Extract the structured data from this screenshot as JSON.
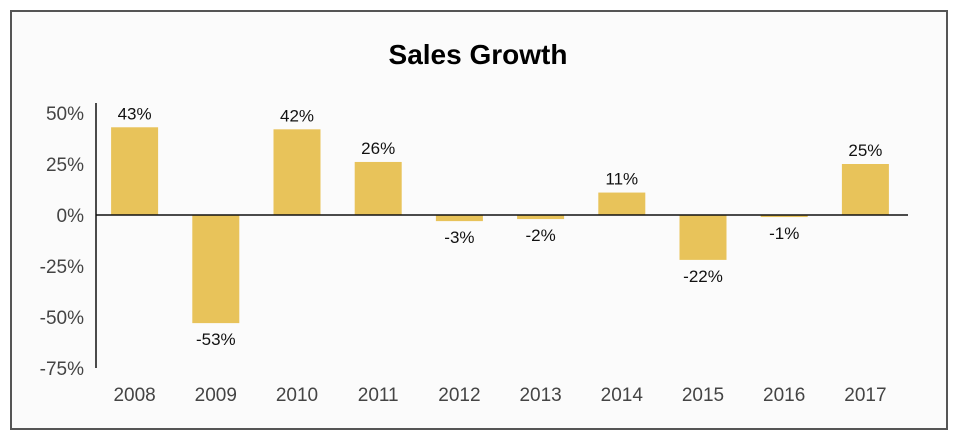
{
  "chart_data": {
    "type": "bar",
    "title": "Sales Growth",
    "xlabel": "",
    "ylabel": "",
    "categories": [
      "2008",
      "2009",
      "2010",
      "2011",
      "2012",
      "2013",
      "2014",
      "2015",
      "2016",
      "2017"
    ],
    "values": [
      43,
      -53,
      42,
      26,
      -3,
      -2,
      11,
      -22,
      -1,
      25
    ],
    "data_labels": [
      "43%",
      "-53%",
      "42%",
      "26%",
      "-3%",
      "-2%",
      "11%",
      "-22%",
      "-1%",
      "25%"
    ],
    "ylim": [
      -75,
      50
    ],
    "yticks": [
      50,
      25,
      0,
      -25,
      -50,
      -75
    ],
    "ytick_labels": [
      "50%",
      "25%",
      "0%",
      "-25%",
      "-50%",
      "-75%"
    ],
    "grid": false,
    "legend": "none",
    "bar_color": "#e8c35a"
  }
}
